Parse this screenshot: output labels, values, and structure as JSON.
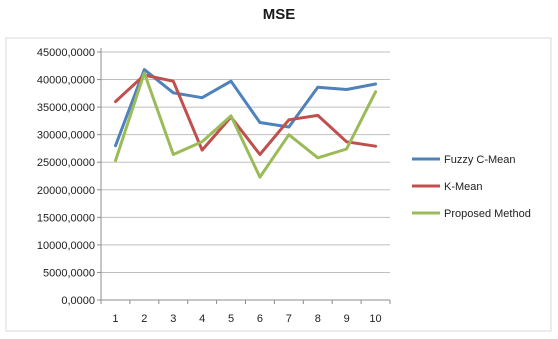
{
  "chart_data": {
    "type": "line",
    "title": "MSE",
    "xlabel": "",
    "ylabel": "",
    "categories": [
      "1",
      "2",
      "3",
      "4",
      "5",
      "6",
      "7",
      "8",
      "9",
      "10"
    ],
    "y_ticks": [
      "0,0000",
      "5000,0000",
      "10000,0000",
      "15000,0000",
      "20000,0000",
      "25000,0000",
      "30000,0000",
      "35000,0000",
      "40000,0000",
      "45000,0000"
    ],
    "ylim": [
      0,
      45000
    ],
    "grid": true,
    "legend_position": "right",
    "series": [
      {
        "name": "Fuzzy C-Mean",
        "color": "#4f81bd",
        "values": [
          28000,
          41800,
          37600,
          36700,
          39700,
          32200,
          31400,
          38600,
          38200,
          39200
        ]
      },
      {
        "name": "K-Mean",
        "color": "#c0504d",
        "values": [
          36000,
          40800,
          39700,
          27200,
          33200,
          26400,
          32700,
          33500,
          28700,
          27900
        ]
      },
      {
        "name": "Proposed Method",
        "color": "#9bbb59",
        "values": [
          25300,
          41200,
          26400,
          28700,
          33400,
          22300,
          30000,
          25800,
          27400,
          37800
        ]
      }
    ]
  }
}
